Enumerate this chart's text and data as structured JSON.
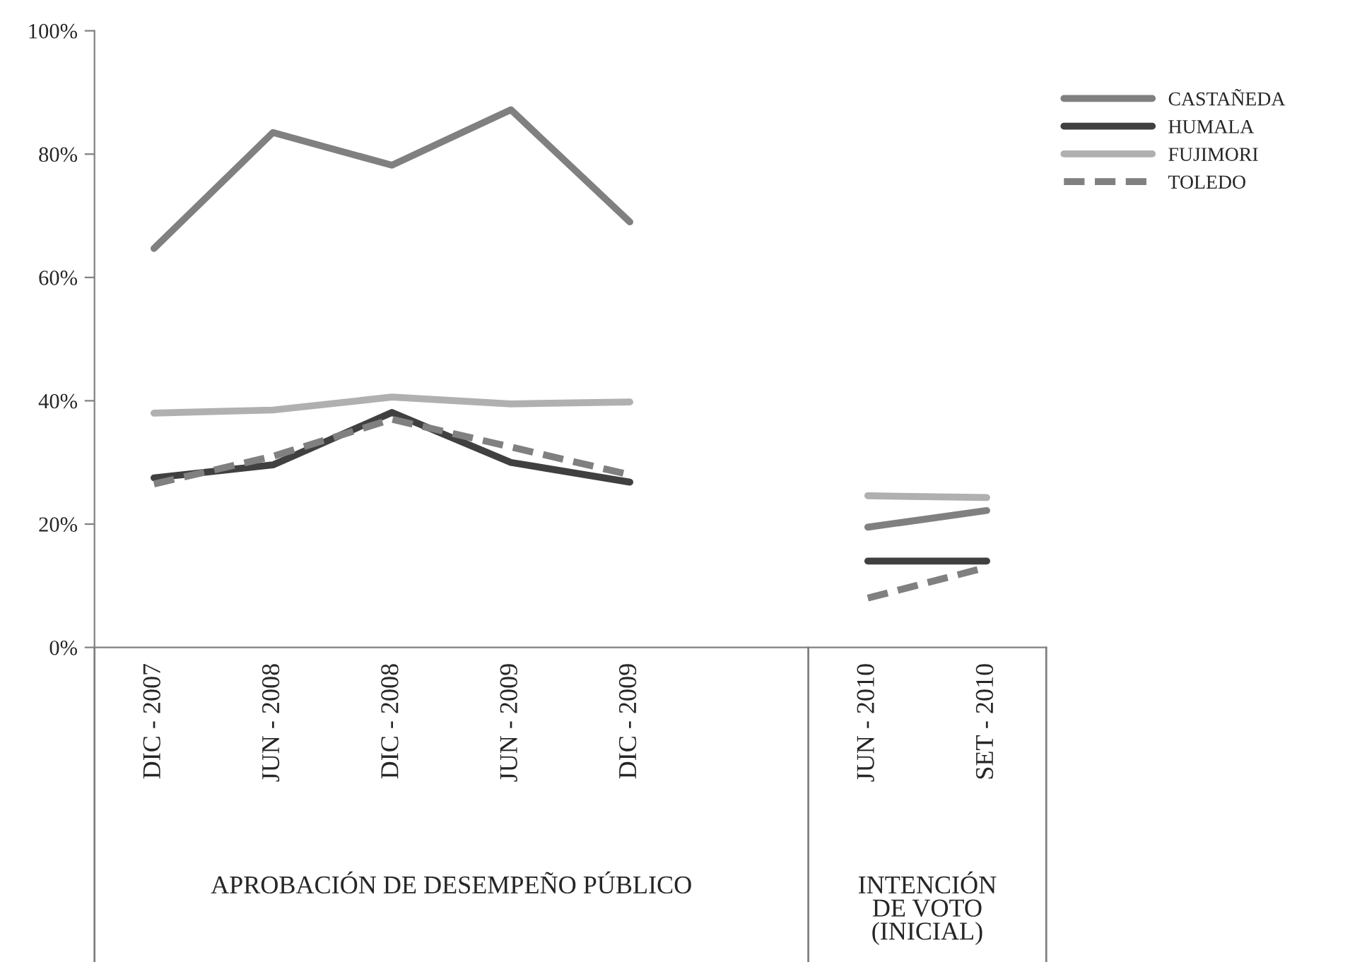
{
  "chart_data": {
    "type": "line",
    "categories": [
      "DIC - 2007",
      "JUN - 2008",
      "DIC - 2008",
      "JUN - 2009",
      "DIC - 2009",
      null,
      "JUN - 2010",
      "SET - 2010"
    ],
    "series": [
      {
        "name": "CASTAÑEDA",
        "color": "#808080",
        "line_style": "solid",
        "values": [
          64.7,
          83.5,
          78.2,
          87.2,
          69,
          null,
          19.5,
          22.2
        ]
      },
      {
        "name": "HUMALA",
        "color": "#404040",
        "line_style": "solid",
        "values": [
          27.5,
          29.6,
          38.1,
          30,
          26.8,
          null,
          14,
          14
        ]
      },
      {
        "name": "FUJIMORI",
        "color": "#b0b0b0",
        "line_style": "solid",
        "values": [
          38,
          38.5,
          40.6,
          39.5,
          39.8,
          null,
          24.6,
          24.3
        ]
      },
      {
        "name": "TOLEDO",
        "color": "#808080",
        "line_style": "dashed",
        "values": [
          26.5,
          31,
          37,
          32.5,
          28,
          null,
          8,
          13
        ]
      }
    ],
    "ylim": [
      0,
      100
    ],
    "yticks": [
      {
        "value": 0,
        "label": "0%"
      },
      {
        "value": 20,
        "label": "20%"
      },
      {
        "value": 40,
        "label": "40%"
      },
      {
        "value": 60,
        "label": "60%"
      },
      {
        "value": 80,
        "label": "80%"
      },
      {
        "value": 100,
        "label": "100%"
      }
    ],
    "annotations": [
      "APROBACIÓN DE DESEMPEÑO PÚBLICO",
      "INTENCIÓN\nDE VOTO\n(INICIAL)"
    ],
    "legend": "top right",
    "grid": false,
    "marker": "none"
  }
}
